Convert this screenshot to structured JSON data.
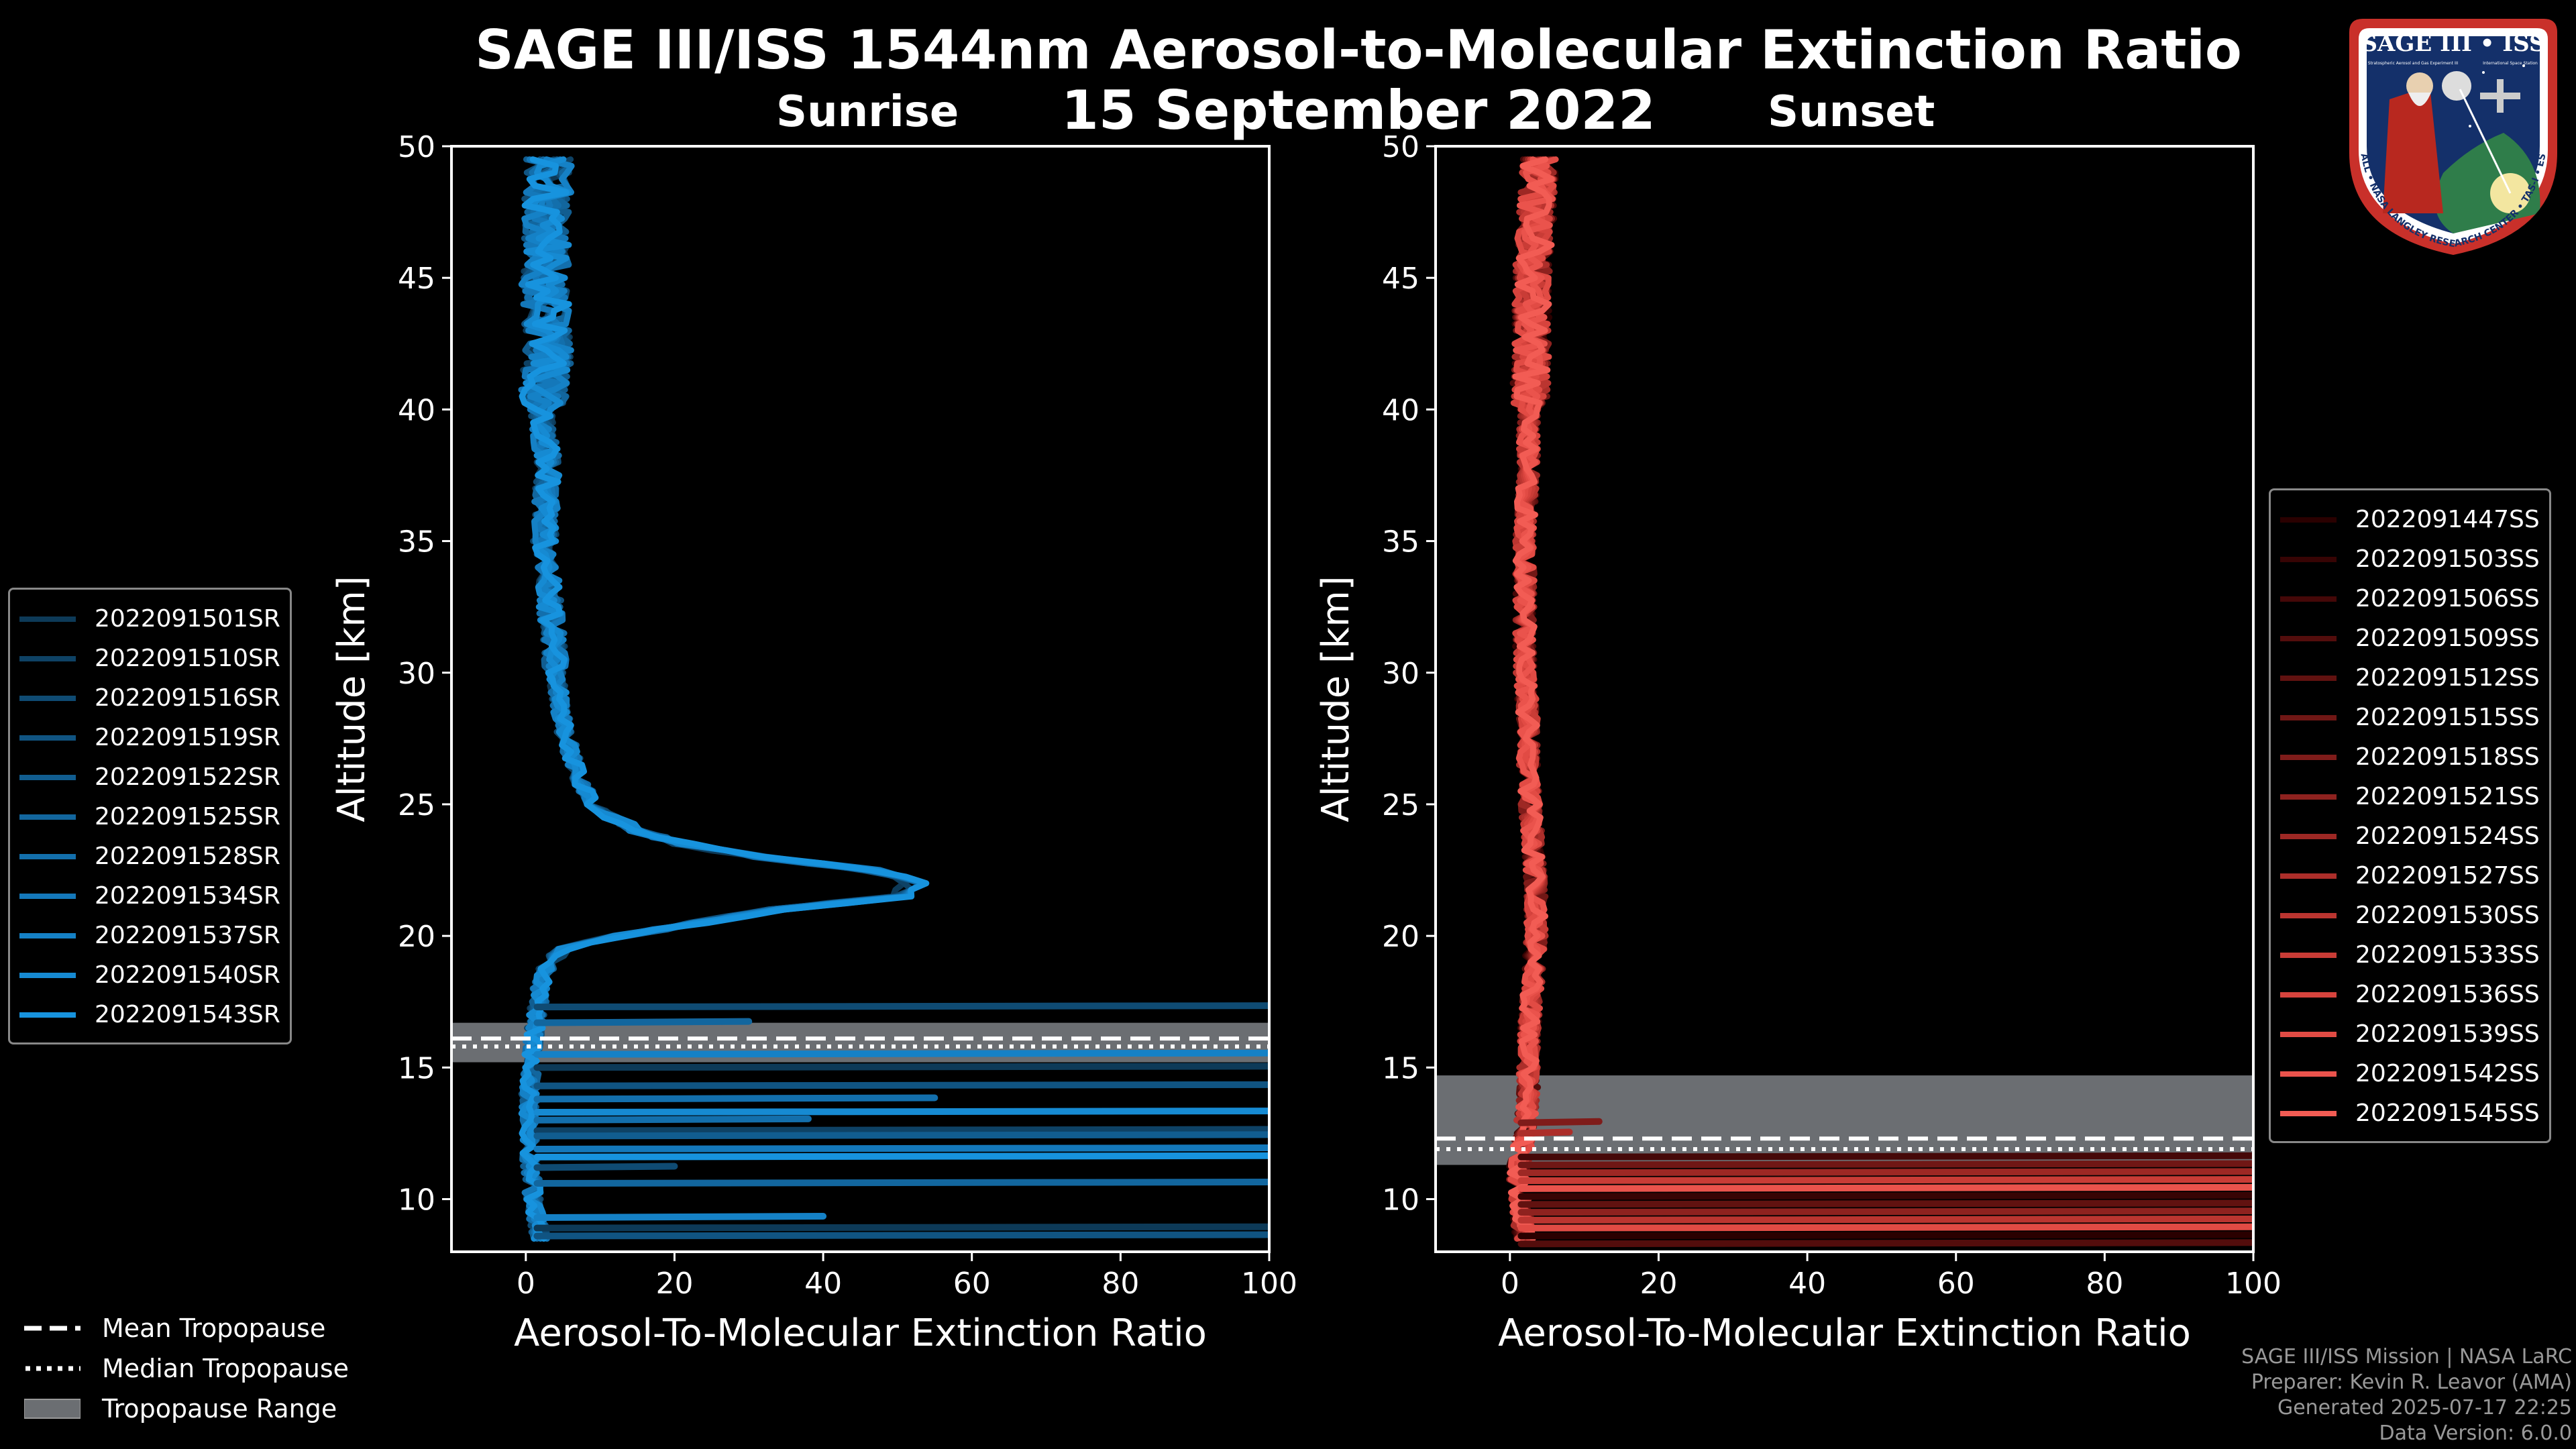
{
  "title_line1": "SAGE III/ISS 1544nm Aerosol-to-Molecular Extinction Ratio",
  "title_line2": "15 September 2022",
  "chart_data": [
    {
      "type": "line",
      "panel": "Sunrise",
      "title": "Sunrise",
      "xlabel": "Aerosol-To-Molecular Extinction Ratio",
      "ylabel": "Altitude [km]",
      "xlim": [
        -10,
        100
      ],
      "ylim": [
        8,
        50
      ],
      "xticks": [
        0,
        20,
        40,
        60,
        80,
        100
      ],
      "yticks": [
        10,
        15,
        20,
        25,
        30,
        35,
        40,
        45,
        50
      ],
      "tropopause": {
        "mean": 16.1,
        "median": 15.8,
        "range": [
          15.2,
          16.7
        ]
      },
      "series": [
        {
          "name": "2022091501SR",
          "color": "#0d3a58"
        },
        {
          "name": "2022091510SR",
          "color": "#0e4265"
        },
        {
          "name": "2022091516SR",
          "color": "#0f4b73"
        },
        {
          "name": "2022091519SR",
          "color": "#105482"
        },
        {
          "name": "2022091522SR",
          "color": "#115d90"
        },
        {
          "name": "2022091525SR",
          "color": "#12669e"
        },
        {
          "name": "2022091528SR",
          "color": "#136fac"
        },
        {
          "name": "2022091534SR",
          "color": "#1478ba"
        },
        {
          "name": "2022091537SR",
          "color": "#1581c6"
        },
        {
          "name": "2022091540SR",
          "color": "#168ad2"
        },
        {
          "name": "2022091543SR",
          "color": "#1793de"
        }
      ],
      "profile_shape": {
        "altitude": [
          8.5,
          10,
          12,
          14,
          16,
          17,
          18,
          19,
          19.5,
          20,
          21,
          21.5,
          22,
          22.5,
          23,
          23.5,
          24,
          25,
          26,
          28,
          30,
          32,
          35,
          38,
          40,
          42,
          45,
          47,
          49.5
        ],
        "ratio": [
          2,
          1,
          0.5,
          0.5,
          1,
          1.5,
          2,
          3,
          5,
          12,
          32,
          48,
          50,
          44,
          30,
          20,
          14,
          9,
          7,
          5,
          4,
          3.5,
          2.5,
          3,
          2,
          3,
          2.5,
          3,
          3
        ]
      }
    },
    {
      "type": "line",
      "panel": "Sunset",
      "title": "Sunset",
      "xlabel": "Aerosol-To-Molecular Extinction Ratio",
      "ylabel": "Altitude [km]",
      "xlim": [
        -10,
        100
      ],
      "ylim": [
        8,
        50
      ],
      "xticks": [
        0,
        20,
        40,
        60,
        80,
        100
      ],
      "yticks": [
        10,
        15,
        20,
        25,
        30,
        35,
        40,
        45,
        50
      ],
      "tropopause": {
        "mean": 12.3,
        "median": 11.9,
        "range": [
          11.3,
          14.7
        ]
      },
      "series": [
        {
          "name": "2022091447SS",
          "color": "#2a0000"
        },
        {
          "name": "2022091503SS",
          "color": "#370404"
        },
        {
          "name": "2022091506SS",
          "color": "#450808"
        },
        {
          "name": "2022091509SS",
          "color": "#530d0c"
        },
        {
          "name": "2022091512SS",
          "color": "#611210"
        },
        {
          "name": "2022091515SS",
          "color": "#701715"
        },
        {
          "name": "2022091518SS",
          "color": "#7f1c1a"
        },
        {
          "name": "2022091521SS",
          "color": "#8e221f"
        },
        {
          "name": "2022091524SS",
          "color": "#9d2824"
        },
        {
          "name": "2022091527SS",
          "color": "#ac2e2a"
        },
        {
          "name": "2022091530SS",
          "color": "#bb3530"
        },
        {
          "name": "2022091533SS",
          "color": "#c93c36"
        },
        {
          "name": "2022091536SS",
          "color": "#d6433d"
        },
        {
          "name": "2022091539SS",
          "color": "#e14b44"
        },
        {
          "name": "2022091542SS",
          "color": "#ea534c"
        },
        {
          "name": "2022091545SS",
          "color": "#f25c54"
        }
      ],
      "profile_shape": {
        "altitude": [
          8.5,
          9.5,
          11,
          12.5,
          14,
          16,
          18,
          20,
          22,
          24,
          26,
          28,
          30,
          32,
          35,
          38,
          40,
          42,
          45,
          47,
          49.5
        ],
        "ratio": [
          2,
          1.5,
          1,
          2,
          2.5,
          2.5,
          3,
          3.5,
          3.5,
          3,
          2.5,
          2.5,
          2,
          2,
          2,
          2.5,
          2.5,
          3,
          3,
          3.5,
          4
        ]
      }
    }
  ],
  "tropopause_legend": [
    {
      "label": "Mean Tropopause",
      "style": "dashed"
    },
    {
      "label": "Median Tropopause",
      "style": "dotted"
    },
    {
      "label": "Tropopause Range",
      "style": "band"
    }
  ],
  "footer": {
    "line1": "SAGE III/ISS Mission | NASA LaRC",
    "line2": "Preparer: Kevin R. Leavor (AMA)",
    "line3": "Generated 2025-07-17 22:25",
    "line4": "Data Version: 6.0.0"
  },
  "logo": {
    "title": "SAGE III • ISS",
    "subtitle": "Stratospheric Aerosol and Gas Experiment III",
    "subtitle2": "International Space Station",
    "ring_text": "BALL • NASA LANGLEY RESEARCH CENTER • TAS-I • ESA"
  },
  "colors": {
    "background": "#000000",
    "band": "#6b6e72",
    "axis": "#ffffff",
    "footer_text": "#999999"
  }
}
